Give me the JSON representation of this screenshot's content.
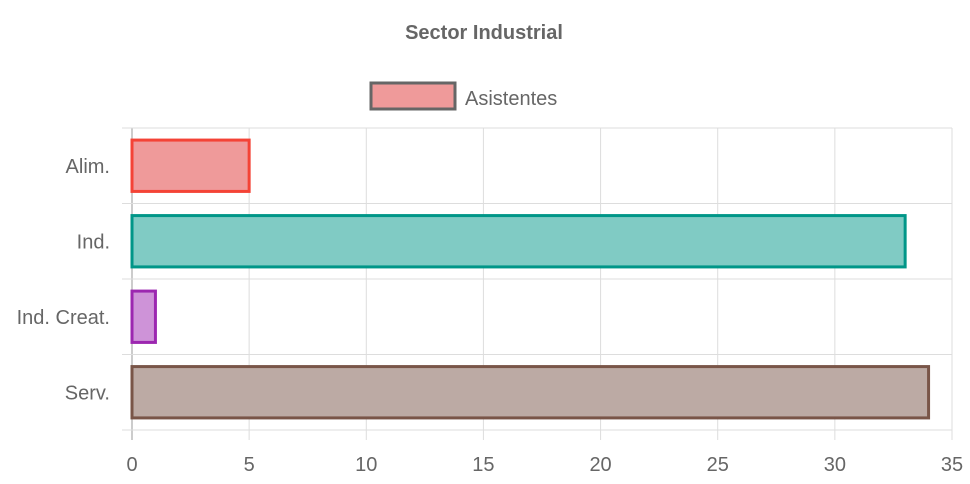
{
  "chart_data": {
    "type": "bar",
    "orientation": "horizontal",
    "title": "Sector Industrial",
    "categories": [
      "Alim.",
      "Ind.",
      "Ind. Creat.",
      "Serv."
    ],
    "series": [
      {
        "name": "Asistentes",
        "values": [
          5,
          33,
          1,
          34
        ]
      }
    ],
    "bar_fill_colors": [
      "#ef9a9a",
      "#80cbc4",
      "#ce93d8",
      "#bcaaa4"
    ],
    "bar_border_colors": [
      "#f44336",
      "#009688",
      "#9c27b0",
      "#795548"
    ],
    "legend": {
      "position": "top",
      "fill_color": "#ef9a9a",
      "border_color": "#666666"
    },
    "x_ticks": [
      "0",
      "5",
      "10",
      "15",
      "20",
      "25",
      "30",
      "35"
    ],
    "xlim": [
      0,
      35
    ],
    "grid": true
  }
}
